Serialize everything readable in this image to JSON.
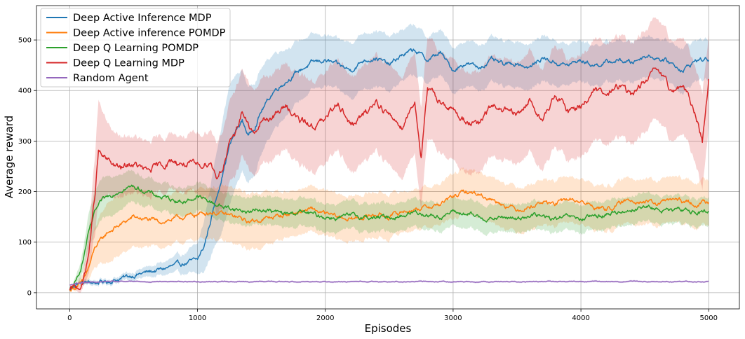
{
  "chart_data": {
    "type": "line",
    "title": "",
    "xlabel": "Episodes",
    "ylabel": "Average reward",
    "xlim": [
      -260,
      5240
    ],
    "ylim": [
      -32,
      568
    ],
    "xticks": [
      0,
      1000,
      2000,
      3000,
      4000,
      5000
    ],
    "yticks": [
      0,
      100,
      200,
      300,
      400,
      500
    ],
    "xtick_labels": [
      "0",
      "1000",
      "2000",
      "3000",
      "4000",
      "5000"
    ],
    "ytick_labels": [
      "0",
      "100",
      "200",
      "300",
      "400",
      "500"
    ],
    "grid": true,
    "legend_position": "top-left",
    "shaded_band": "spread around each series mean",
    "series": [
      {
        "name": "Deep Active Inference MDP",
        "color": "#1f77b4",
        "x": [
          0,
          50,
          100,
          200,
          300,
          400,
          500,
          600,
          700,
          800,
          900,
          1000,
          1050,
          1100,
          1150,
          1200,
          1250,
          1300,
          1350,
          1400,
          1450,
          1500,
          1600,
          1700,
          1800,
          1900,
          2000,
          2100,
          2200,
          2300,
          2400,
          2500,
          2600,
          2700,
          2800,
          2900,
          3000,
          3100,
          3200,
          3300,
          3400,
          3500,
          3600,
          3700,
          3800,
          3900,
          4000,
          4100,
          4200,
          4300,
          4400,
          4500,
          4600,
          4700,
          4800,
          4900,
          5000
        ],
        "y": [
          5,
          18,
          20,
          20,
          22,
          28,
          35,
          40,
          45,
          52,
          58,
          65,
          90,
          140,
          190,
          240,
          290,
          320,
          340,
          310,
          330,
          360,
          400,
          420,
          440,
          455,
          460,
          450,
          440,
          460,
          465,
          450,
          470,
          480,
          460,
          475,
          440,
          455,
          445,
          460,
          450,
          455,
          445,
          465,
          455,
          450,
          460,
          450,
          455,
          460,
          455,
          470,
          465,
          455,
          440,
          460,
          462
        ],
        "spread": [
          0,
          3,
          5,
          5,
          5,
          6,
          8,
          10,
          12,
          15,
          20,
          30,
          50,
          70,
          90,
          110,
          120,
          110,
          100,
          95,
          90,
          85,
          75,
          65,
          60,
          55,
          50,
          50,
          55,
          55,
          55,
          55,
          50,
          50,
          45,
          45,
          45,
          45,
          45,
          45,
          45,
          45,
          45,
          45,
          45,
          40,
          40,
          40,
          40,
          40,
          40,
          40,
          40,
          40,
          45,
          40,
          40
        ]
      },
      {
        "name": "Deep Active inference POMDP",
        "color": "#ff7f0e",
        "x": [
          0,
          50,
          100,
          150,
          200,
          300,
          400,
          500,
          600,
          700,
          800,
          900,
          1000,
          1100,
          1200,
          1300,
          1400,
          1500,
          1600,
          1700,
          1800,
          1900,
          2000,
          2100,
          2200,
          2300,
          2400,
          2500,
          2600,
          2700,
          2800,
          2900,
          3000,
          3100,
          3200,
          3300,
          3400,
          3500,
          3600,
          3700,
          3800,
          3900,
          4000,
          4100,
          4200,
          4300,
          4400,
          4500,
          4600,
          4700,
          4800,
          4900,
          5000
        ],
        "y": [
          5,
          12,
          20,
          50,
          90,
          120,
          135,
          150,
          145,
          140,
          145,
          150,
          155,
          160,
          155,
          150,
          140,
          145,
          150,
          155,
          160,
          165,
          155,
          150,
          145,
          150,
          155,
          150,
          160,
          165,
          170,
          175,
          190,
          200,
          195,
          185,
          175,
          165,
          170,
          180,
          175,
          185,
          180,
          170,
          165,
          175,
          185,
          180,
          175,
          185,
          180,
          175,
          180
        ],
        "spread": [
          0,
          5,
          10,
          25,
          40,
          60,
          60,
          60,
          55,
          50,
          50,
          50,
          50,
          50,
          55,
          55,
          55,
          55,
          50,
          45,
          45,
          45,
          45,
          45,
          45,
          45,
          45,
          45,
          40,
          40,
          40,
          40,
          45,
          45,
          45,
          45,
          45,
          45,
          45,
          45,
          45,
          45,
          45,
          45,
          45,
          45,
          45,
          45,
          45,
          45,
          45,
          45,
          45
        ]
      },
      {
        "name": "Deep Q Learning POMDP",
        "color": "#2ca02c",
        "x": [
          0,
          50,
          100,
          150,
          200,
          250,
          300,
          400,
          500,
          600,
          700,
          800,
          900,
          1000,
          1100,
          1200,
          1300,
          1400,
          1500,
          1600,
          1700,
          1800,
          1900,
          2000,
          2100,
          2200,
          2300,
          2400,
          2500,
          2600,
          2700,
          2800,
          2900,
          3000,
          3100,
          3200,
          3300,
          3400,
          3500,
          3600,
          3700,
          3800,
          3900,
          4000,
          4100,
          4200,
          4300,
          4400,
          4500,
          4600,
          4700,
          4800,
          4900,
          5000
        ],
        "y": [
          5,
          20,
          60,
          120,
          160,
          180,
          190,
          205,
          210,
          200,
          190,
          185,
          180,
          190,
          180,
          170,
          165,
          160,
          165,
          160,
          155,
          160,
          155,
          150,
          148,
          152,
          150,
          148,
          150,
          152,
          160,
          155,
          150,
          160,
          155,
          150,
          145,
          150,
          145,
          155,
          150,
          145,
          150,
          145,
          150,
          155,
          160,
          165,
          170,
          165,
          160,
          165,
          160,
          158
        ],
        "spread": [
          0,
          8,
          20,
          35,
          40,
          40,
          40,
          35,
          30,
          28,
          28,
          28,
          28,
          28,
          28,
          28,
          28,
          28,
          28,
          28,
          28,
          28,
          28,
          28,
          28,
          28,
          28,
          28,
          28,
          28,
          28,
          28,
          28,
          28,
          28,
          28,
          28,
          28,
          28,
          28,
          28,
          28,
          28,
          28,
          28,
          28,
          28,
          28,
          28,
          28,
          28,
          28,
          28,
          28
        ]
      },
      {
        "name": "Deep Q Learning MDP",
        "color": "#d62728",
        "x": [
          0,
          50,
          100,
          150,
          200,
          225,
          250,
          300,
          400,
          500,
          600,
          700,
          800,
          900,
          1000,
          1100,
          1150,
          1200,
          1250,
          1300,
          1350,
          1400,
          1450,
          1500,
          1600,
          1700,
          1800,
          1900,
          2000,
          2100,
          2200,
          2300,
          2400,
          2500,
          2600,
          2700,
          2750,
          2800,
          2900,
          3000,
          3100,
          3200,
          3300,
          3400,
          3500,
          3600,
          3700,
          3800,
          3900,
          4000,
          4100,
          4200,
          4300,
          4400,
          4500,
          4600,
          4700,
          4800,
          4900,
          4950,
          5000
        ],
        "y": [
          5,
          10,
          15,
          80,
          200,
          280,
          270,
          260,
          245,
          255,
          240,
          250,
          260,
          255,
          250,
          260,
          230,
          250,
          290,
          320,
          360,
          330,
          310,
          340,
          350,
          370,
          340,
          330,
          340,
          380,
          330,
          350,
          380,
          350,
          330,
          380,
          270,
          400,
          380,
          360,
          340,
          330,
          370,
          360,
          350,
          380,
          340,
          390,
          360,
          370,
          400,
          390,
          410,
          390,
          420,
          440,
          400,
          410,
          350,
          300,
          420
        ],
        "spread": [
          0,
          5,
          10,
          40,
          80,
          100,
          90,
          70,
          60,
          55,
          55,
          55,
          55,
          55,
          60,
          65,
          70,
          75,
          80,
          85,
          85,
          85,
          85,
          85,
          85,
          85,
          90,
          90,
          90,
          90,
          95,
          95,
          95,
          100,
          100,
          100,
          100,
          100,
          100,
          100,
          100,
          100,
          100,
          100,
          100,
          100,
          100,
          100,
          100,
          100,
          100,
          100,
          100,
          100,
          100,
          100,
          100,
          95,
          95,
          95,
          90
        ]
      },
      {
        "name": "Random Agent",
        "color": "#9467bd",
        "x": [
          0,
          50,
          100,
          200,
          300,
          400,
          500,
          1000,
          1500,
          2000,
          2500,
          3000,
          3500,
          4000,
          4500,
          5000
        ],
        "y": [
          15,
          18,
          20,
          21,
          22,
          22,
          22,
          22,
          22,
          22,
          22,
          22,
          22,
          22,
          22,
          22
        ],
        "spread": [
          0,
          2,
          2,
          2,
          2,
          2,
          2,
          2,
          2,
          2,
          2,
          2,
          2,
          2,
          2,
          2
        ]
      }
    ]
  }
}
